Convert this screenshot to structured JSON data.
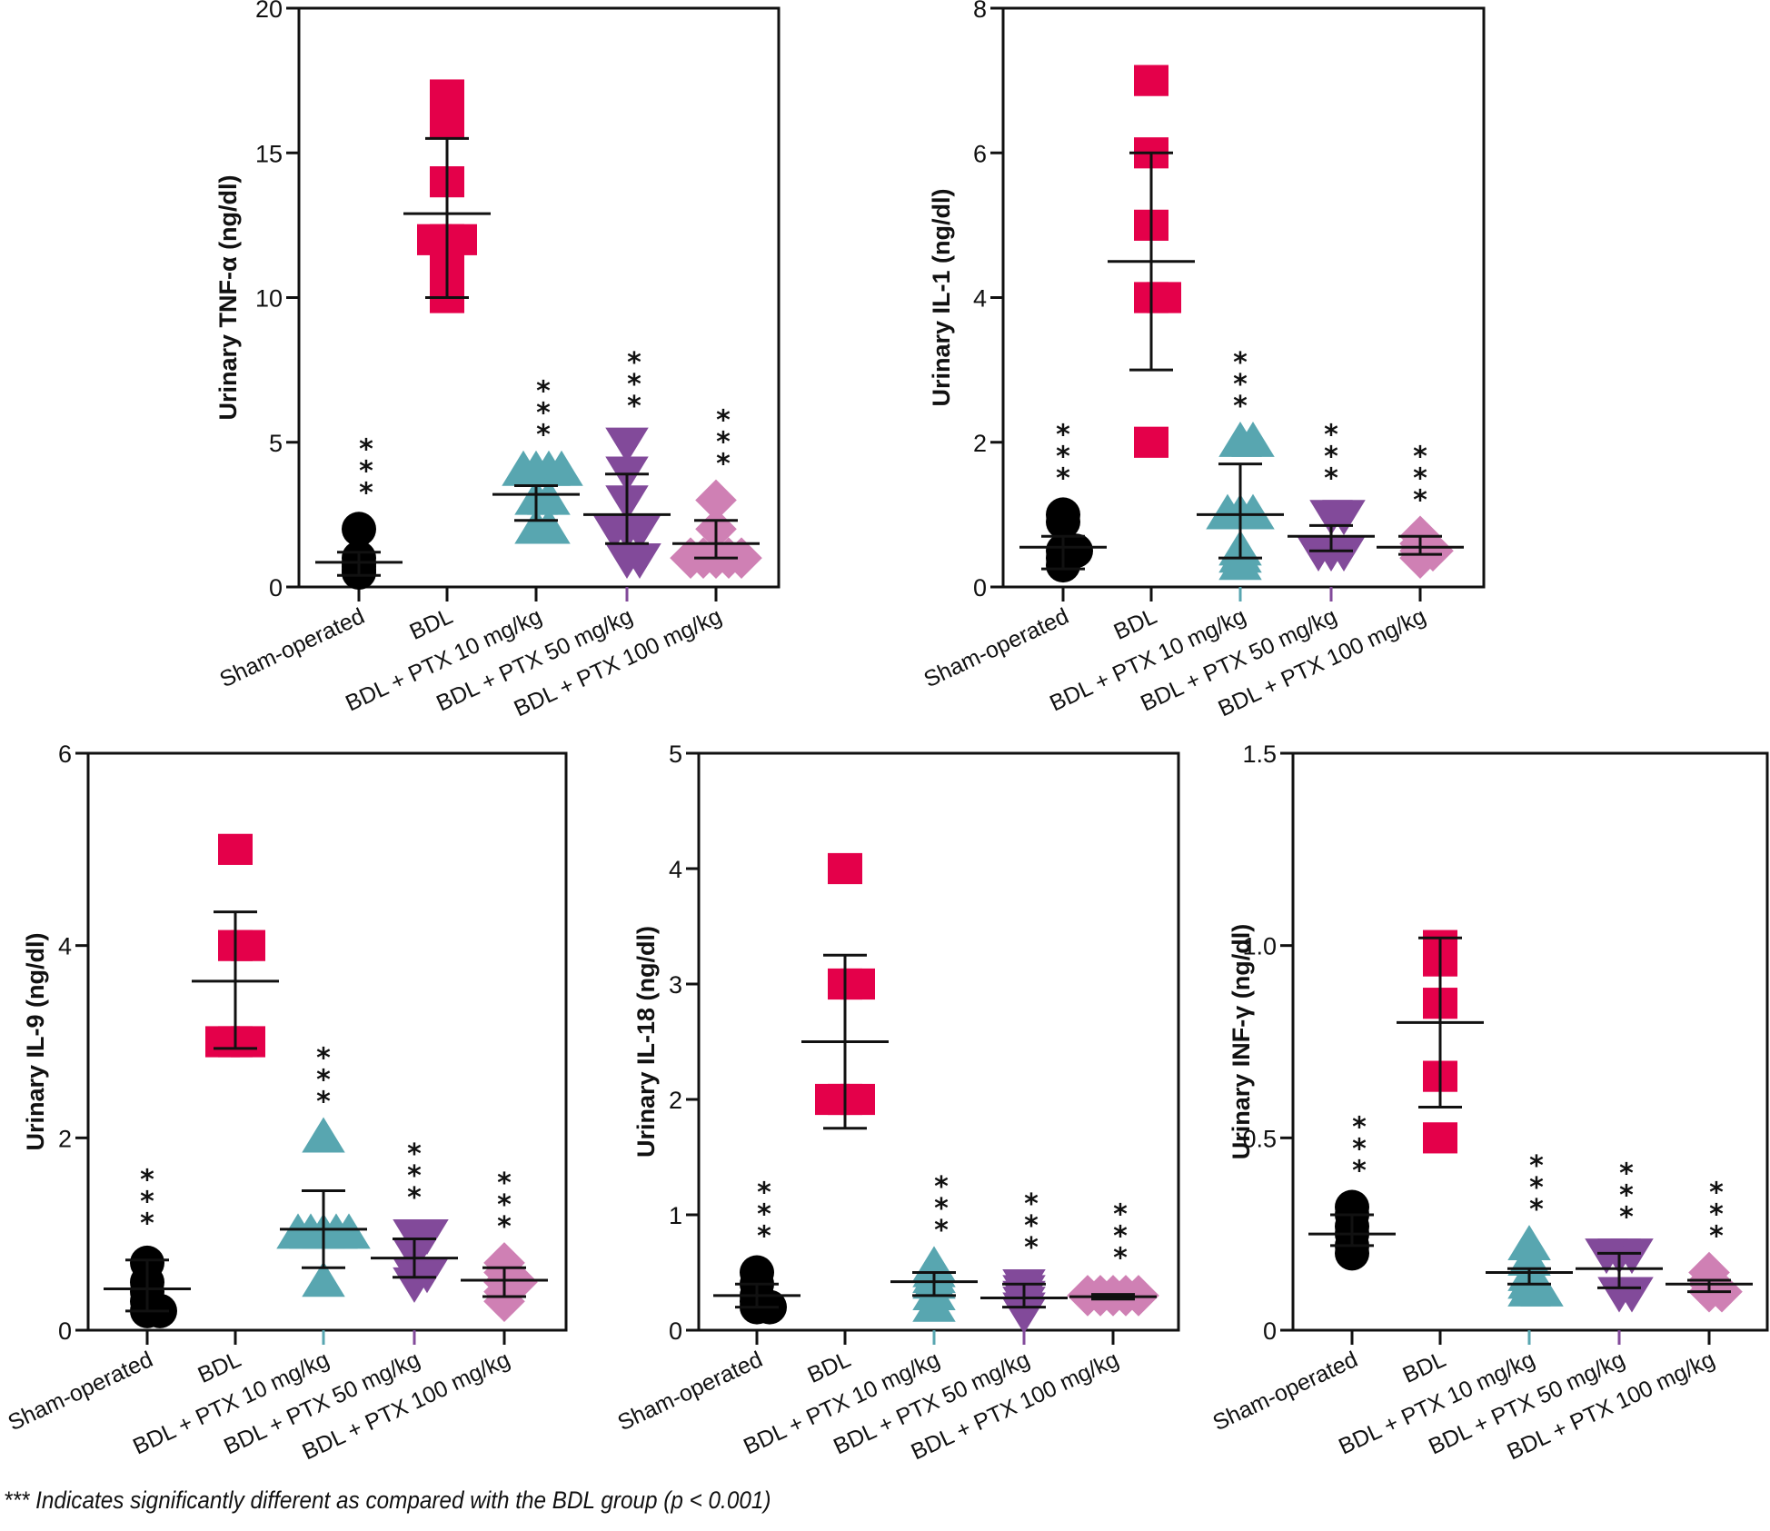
{
  "footnote": "*** Indicates significantly different as compared with the BDL group (p < 0.001)",
  "significance_marker": "***",
  "groups": [
    "Sham-operated",
    "BDL",
    "BDL + PTX 10 mg/kg",
    "BDL + PTX 50 mg/kg",
    "BDL + PTX 100 mg/kg"
  ],
  "group_styles": [
    {
      "marker": "circle",
      "color": "#000000"
    },
    {
      "marker": "square",
      "color": "#e4004a"
    },
    {
      "marker": "triangle-up",
      "color": "#58a6b0"
    },
    {
      "marker": "triangle-down",
      "color": "#824a9a"
    },
    {
      "marker": "diamond",
      "color": "#cf80b4"
    }
  ],
  "chart_data": [
    {
      "type": "scatter",
      "title": "",
      "ylabel": "Urinary TNF-α (ng/dl)",
      "ylim": [
        0,
        20
      ],
      "yticks": [
        0,
        5,
        10,
        15,
        20
      ],
      "ytick_labels": [
        "0",
        "5",
        "10",
        "15",
        "20"
      ],
      "categories": [
        "Sham-operated",
        "BDL",
        "BDL + PTX 10 mg/kg",
        "BDL + PTX 50 mg/kg",
        "BDL + PTX 100 mg/kg"
      ],
      "series": [
        {
          "name": "Sham-operated",
          "values": [
            2.0,
            1.0,
            0.8,
            0.5,
            0.6,
            0.7
          ],
          "mean": 0.85,
          "sd_low": 0.4,
          "sd_high": 1.2,
          "significant": true
        },
        {
          "name": "BDL",
          "values": [
            17,
            16,
            14,
            12,
            12,
            12,
            11,
            10
          ],
          "mean": 12.9,
          "sd_low": 10.0,
          "sd_high": 15.5,
          "significant": false
        },
        {
          "name": "BDL + PTX 10 mg/kg",
          "values": [
            4,
            4,
            4,
            4,
            3,
            3,
            2,
            2
          ],
          "mean": 3.2,
          "sd_low": 2.3,
          "sd_high": 3.5,
          "significant": true
        },
        {
          "name": "BDL + PTX 50 mg/kg",
          "values": [
            5,
            4,
            3,
            2,
            2,
            2,
            1,
            1
          ],
          "mean": 2.5,
          "sd_low": 1.5,
          "sd_high": 3.9,
          "significant": true
        },
        {
          "name": "BDL + PTX 100 mg/kg",
          "values": [
            3,
            2,
            1,
            1,
            1,
            1,
            1
          ],
          "mean": 1.5,
          "sd_low": 1.0,
          "sd_high": 2.3,
          "significant": true
        }
      ]
    },
    {
      "type": "scatter",
      "title": "",
      "ylabel": "Urinary IL-1 (ng/dl)",
      "ylim": [
        0,
        8
      ],
      "yticks": [
        0,
        2,
        4,
        6,
        8
      ],
      "ytick_labels": [
        "0",
        "2",
        "4",
        "6",
        "8"
      ],
      "categories": [
        "Sham-operated",
        "BDL",
        "BDL + PTX 10 mg/kg",
        "BDL + PTX 50 mg/kg",
        "BDL + PTX 100 mg/kg"
      ],
      "series": [
        {
          "name": "Sham-operated",
          "values": [
            1.0,
            0.9,
            0.5,
            0.5,
            0.4,
            0.3
          ],
          "mean": 0.55,
          "sd_low": 0.25,
          "sd_high": 0.7,
          "significant": true
        },
        {
          "name": "BDL",
          "values": [
            7,
            6,
            5,
            4,
            4,
            2
          ],
          "mean": 4.5,
          "sd_low": 3.0,
          "sd_high": 6.0,
          "significant": false
        },
        {
          "name": "BDL + PTX 10 mg/kg",
          "values": [
            2,
            2,
            1,
            1,
            1,
            0.5,
            0.4,
            0.3
          ],
          "mean": 1.0,
          "sd_low": 0.4,
          "sd_high": 1.7,
          "significant": true
        },
        {
          "name": "BDL + PTX 50 mg/kg",
          "values": [
            1.0,
            1.0,
            0.5,
            0.5,
            0.5
          ],
          "mean": 0.7,
          "sd_low": 0.5,
          "sd_high": 0.85,
          "significant": true
        },
        {
          "name": "BDL + PTX 100 mg/kg",
          "values": [
            0.7,
            0.6,
            0.5,
            0.5,
            0.4
          ],
          "mean": 0.55,
          "sd_low": 0.45,
          "sd_high": 0.7,
          "significant": true
        }
      ]
    },
    {
      "type": "scatter",
      "title": "",
      "ylabel": "Urinary IL-9 (ng/dl)",
      "ylim": [
        0,
        6
      ],
      "yticks": [
        0,
        2,
        4,
        6
      ],
      "ytick_labels": [
        "0",
        "2",
        "4",
        "6"
      ],
      "categories": [
        "Sham-operated",
        "BDL",
        "BDL + PTX 10 mg/kg",
        "BDL + PTX 50 mg/kg",
        "BDL + PTX 100 mg/kg"
      ],
      "series": [
        {
          "name": "Sham-operated",
          "values": [
            0.7,
            0.5,
            0.4,
            0.3,
            0.2,
            0.2
          ],
          "mean": 0.43,
          "sd_low": 0.2,
          "sd_high": 0.73,
          "significant": true
        },
        {
          "name": "BDL",
          "values": [
            5,
            4,
            4,
            3,
            3,
            3
          ],
          "mean": 3.63,
          "sd_low": 2.93,
          "sd_high": 4.35,
          "significant": false
        },
        {
          "name": "BDL + PTX 10 mg/kg",
          "values": [
            2,
            1,
            1,
            1,
            1,
            1,
            0.5
          ],
          "mean": 1.05,
          "sd_low": 0.65,
          "sd_high": 1.45,
          "significant": true
        },
        {
          "name": "BDL + PTX 50 mg/kg",
          "values": [
            1.0,
            1.0,
            0.8,
            0.6,
            0.6,
            0.5
          ],
          "mean": 0.75,
          "sd_low": 0.55,
          "sd_high": 0.95,
          "significant": true
        },
        {
          "name": "BDL + PTX 100 mg/kg",
          "values": [
            0.7,
            0.6,
            0.5,
            0.5,
            0.4,
            0.3
          ],
          "mean": 0.52,
          "sd_low": 0.35,
          "sd_high": 0.65,
          "significant": true
        }
      ]
    },
    {
      "type": "scatter",
      "title": "",
      "ylabel": "Urinary IL-18 (ng/dl)",
      "ylim": [
        0,
        5
      ],
      "yticks": [
        0,
        1,
        2,
        3,
        4,
        5
      ],
      "ytick_labels": [
        "0",
        "1",
        "2",
        "3",
        "4",
        "5"
      ],
      "categories": [
        "Sham-operated",
        "BDL",
        "BDL + PTX 10 mg/kg",
        "BDL + PTX 50 mg/kg",
        "BDL + PTX 100 mg/kg"
      ],
      "series": [
        {
          "name": "Sham-operated",
          "values": [
            0.5,
            0.4,
            0.3,
            0.25,
            0.2,
            0.2
          ],
          "mean": 0.3,
          "sd_low": 0.2,
          "sd_high": 0.4,
          "significant": true
        },
        {
          "name": "BDL",
          "values": [
            4,
            3,
            3,
            2,
            2,
            2
          ],
          "mean": 2.5,
          "sd_low": 1.75,
          "sd_high": 3.25,
          "significant": false
        },
        {
          "name": "BDL + PTX 10 mg/kg",
          "values": [
            0.55,
            0.5,
            0.45,
            0.4,
            0.3,
            0.2
          ],
          "mean": 0.42,
          "sd_low": 0.3,
          "sd_high": 0.5,
          "significant": true
        },
        {
          "name": "BDL + PTX 50 mg/kg",
          "values": [
            0.4,
            0.35,
            0.3,
            0.25,
            0.2,
            0.15
          ],
          "mean": 0.28,
          "sd_low": 0.2,
          "sd_high": 0.4,
          "significant": true
        },
        {
          "name": "BDL + PTX 100 mg/kg",
          "values": [
            0.3,
            0.3,
            0.3,
            0.3,
            0.3
          ],
          "mean": 0.29,
          "sd_low": 0.27,
          "sd_high": 0.31,
          "significant": true
        }
      ]
    },
    {
      "type": "scatter",
      "title": "",
      "ylabel": "Urinary INF-γ (ng/dl)",
      "ylim": [
        0,
        1.5
      ],
      "yticks": [
        0,
        0.5,
        1.0,
        1.5
      ],
      "ytick_labels": [
        "0",
        "0.5",
        "1.0",
        "1.5"
      ],
      "categories": [
        "Sham-operated",
        "BDL",
        "BDL + PTX 10 mg/kg",
        "BDL + PTX 50 mg/kg",
        "BDL + PTX 100 mg/kg"
      ],
      "series": [
        {
          "name": "Sham-operated",
          "values": [
            0.32,
            0.3,
            0.27,
            0.25,
            0.22,
            0.2
          ],
          "mean": 0.25,
          "sd_low": 0.22,
          "sd_high": 0.3,
          "significant": true
        },
        {
          "name": "BDL",
          "values": [
            1.0,
            0.98,
            0.96,
            0.85,
            0.66,
            0.5
          ],
          "mean": 0.8,
          "sd_low": 0.58,
          "sd_high": 1.02,
          "significant": false
        },
        {
          "name": "BDL + PTX 10 mg/kg",
          "values": [
            0.22,
            0.18,
            0.14,
            0.12,
            0.1,
            0.1
          ],
          "mean": 0.15,
          "sd_low": 0.12,
          "sd_high": 0.16,
          "significant": true
        },
        {
          "name": "BDL + PTX 50 mg/kg",
          "values": [
            0.2,
            0.2,
            0.2,
            0.1,
            0.1
          ],
          "mean": 0.16,
          "sd_low": 0.11,
          "sd_high": 0.2,
          "significant": true
        },
        {
          "name": "BDL + PTX 100 mg/kg",
          "values": [
            0.15,
            0.13,
            0.12,
            0.1,
            0.1
          ],
          "mean": 0.12,
          "sd_low": 0.1,
          "sd_high": 0.13,
          "significant": true
        }
      ]
    }
  ]
}
